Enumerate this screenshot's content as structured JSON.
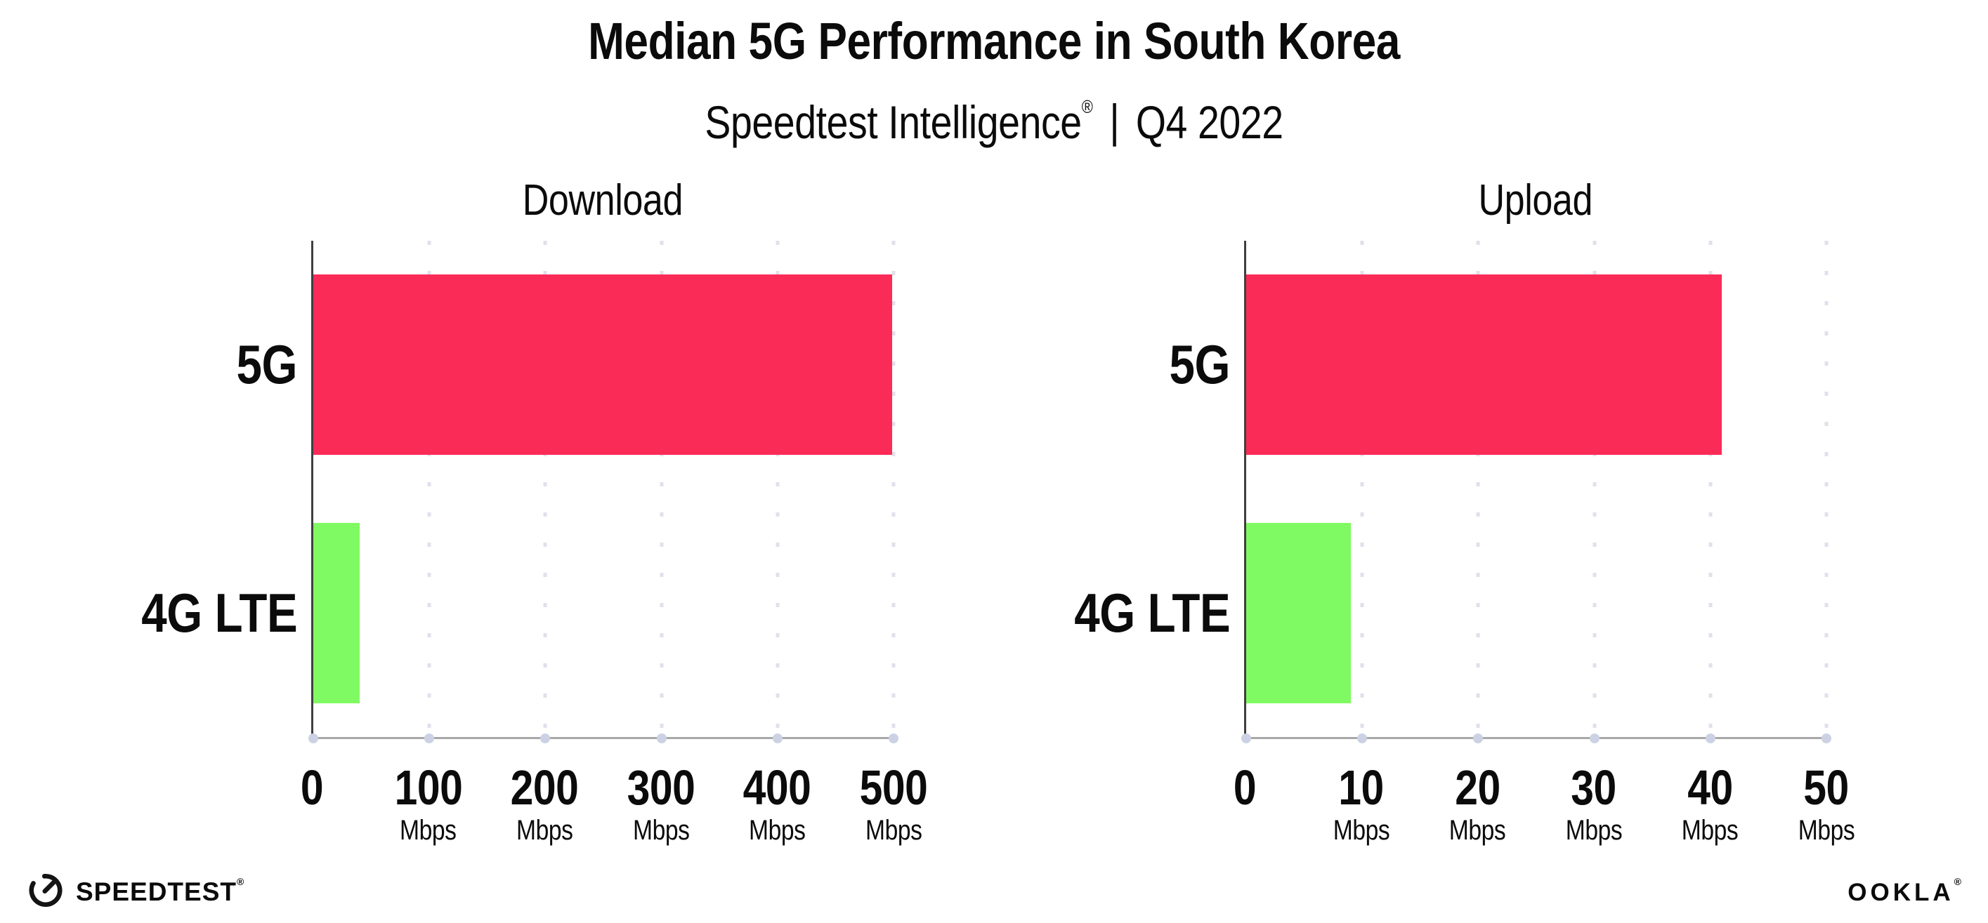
{
  "header": {
    "title": "Median 5G Performance in South Korea",
    "subtitle": {
      "brand": "Speedtest Intelligence",
      "registered_mark": "®",
      "separator": "|",
      "period": "Q4 2022"
    }
  },
  "chart_data": [
    {
      "type": "bar",
      "orientation": "horizontal",
      "title": "Download",
      "categories": [
        "5G",
        "4G LTE"
      ],
      "values": [
        499,
        40
      ],
      "unit": "Mbps",
      "xlim": [
        0,
        500
      ],
      "xticks": [
        0,
        100,
        200,
        300,
        400,
        500
      ],
      "series_colors": [
        "#fb2b58",
        "#80fa62"
      ],
      "grid": "vertical-dotted",
      "legend": "none"
    },
    {
      "type": "bar",
      "orientation": "horizontal",
      "title": "Upload",
      "categories": [
        "5G",
        "4G LTE"
      ],
      "values": [
        41,
        9
      ],
      "unit": "Mbps",
      "xlim": [
        0,
        50
      ],
      "xticks": [
        0,
        10,
        20,
        30,
        40,
        50
      ],
      "series_colors": [
        "#fb2b58",
        "#80fa62"
      ],
      "grid": "vertical-dotted",
      "legend": "none"
    }
  ],
  "footer": {
    "speedtest_wordmark": "SPEEDTEST",
    "speedtest_mark": "®",
    "ookla_wordmark": "OOKLA",
    "ookla_mark": "®"
  },
  "colors": {
    "bar_5g": "#fb2b58",
    "bar_4g_lte": "#80fa62",
    "text": "#0b0b0b",
    "gridline": "#e0e1eb",
    "axis_left_spine": "#3f3f3f",
    "axis_bottom_spine": "#a8a8a8",
    "tick_dot": "#ccd2e4",
    "background": "#ffffff"
  }
}
